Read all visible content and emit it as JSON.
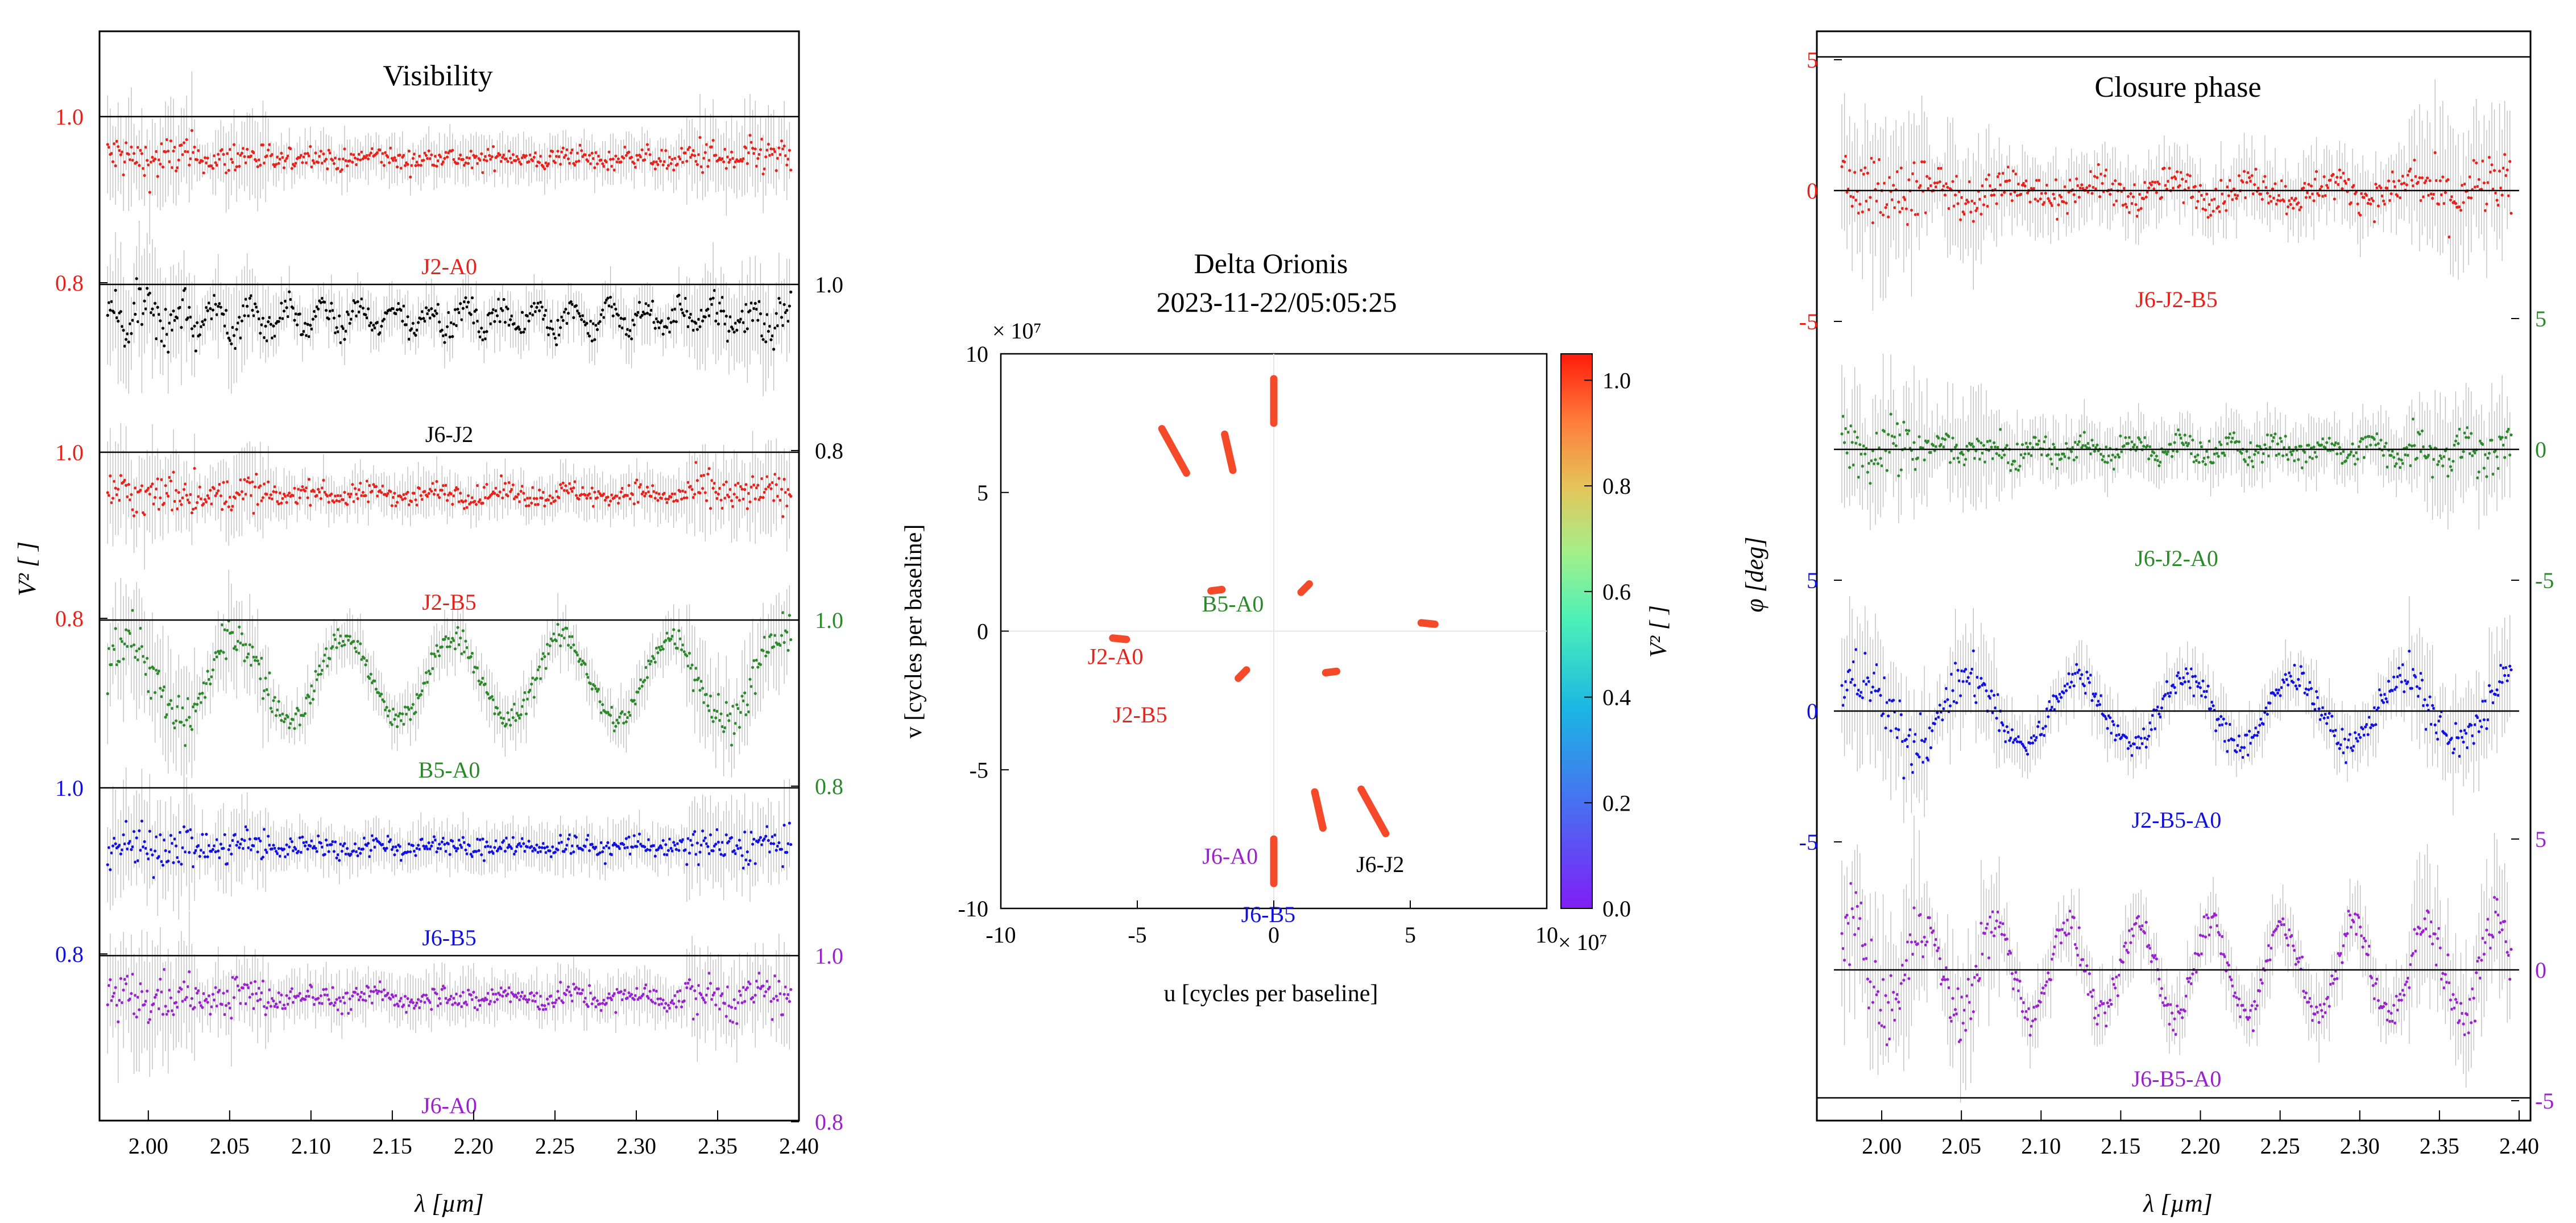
{
  "colors": {
    "red": "#e8221a",
    "green": "#2a8a2a",
    "blue": "#1010e0",
    "purple": "#9a20d0",
    "black": "#000000",
    "errorbar": "#bdbdbd"
  },
  "chart_data": [
    {
      "type": "scatter",
      "title": "Visibility",
      "xlabel": "λ [µm]",
      "ylabel": "V² [ ]",
      "x_ticks": [
        "2.00",
        "2.05",
        "2.10",
        "2.15",
        "2.20",
        "2.25",
        "2.30",
        "2.35",
        "2.40"
      ],
      "xlim": [
        1.97,
        2.4
      ],
      "series": [
        {
          "name": "J2-A0",
          "color": "#e8221a",
          "axis_side": "left",
          "tick_labels": [
            "0.8",
            "1.0"
          ],
          "mean": 0.95,
          "wiggle_amp": 0.004,
          "wiggle_period": 0.04,
          "noise": 0.012
        },
        {
          "name": "J6-J2",
          "color": "#000000",
          "axis_side": "right",
          "tick_labels": [
            "0.8",
            "1.0"
          ],
          "mean": 0.96,
          "wiggle_amp": 0.015,
          "wiggle_period": 0.022,
          "noise": 0.014
        },
        {
          "name": "J2-B5",
          "color": "#e8221a",
          "axis_side": "left",
          "tick_labels": [
            "0.8",
            "1.0"
          ],
          "mean": 0.95,
          "wiggle_amp": 0.004,
          "wiggle_period": 0.04,
          "noise": 0.012
        },
        {
          "name": "B5-A0",
          "color": "#2a8a2a",
          "axis_side": "right",
          "tick_labels": [
            "0.8",
            "1.0"
          ],
          "mean": 0.93,
          "wiggle_amp": 0.05,
          "wiggle_period": 0.067,
          "noise": 0.014
        },
        {
          "name": "J6-B5",
          "color": "#1010e0",
          "axis_side": "left",
          "tick_labels": [
            "0.8",
            "1.0"
          ],
          "mean": 0.93,
          "wiggle_amp": 0.004,
          "wiggle_period": 0.04,
          "noise": 0.012
        },
        {
          "name": "J6-A0",
          "color": "#9a20d0",
          "axis_side": "right",
          "tick_labels": [
            "0.8",
            "1.0"
          ],
          "mean": 0.95,
          "wiggle_amp": 0.005,
          "wiggle_period": 0.04,
          "noise": 0.013
        }
      ]
    },
    {
      "type": "scatter",
      "title": [
        "Delta Orionis",
        "2023-11-22/05:05:25"
      ],
      "xlabel": "u [cycles per baseline]",
      "ylabel": "v [cycles per baseline]",
      "xlim": [
        -10,
        10
      ],
      "ylim": [
        -10,
        10
      ],
      "axis_multiplier": "× 10⁷",
      "x_ticks": [
        "-10",
        "-5",
        "0",
        "5",
        "10"
      ],
      "y_ticks": [
        "10",
        "5",
        "0",
        "-5",
        "-10"
      ],
      "colorbar": {
        "label": "V² [ ]",
        "range": [
          0.0,
          1.05
        ],
        "ticks": [
          "0.0",
          "0.2",
          "0.4",
          "0.6",
          "0.8",
          "1.0"
        ]
      },
      "points": [
        {
          "label": "J2-A0",
          "u1": 5.4,
          "v1": 0.3,
          "u2": 5.9,
          "v2": 0.25
        },
        {
          "label": "J2-B5",
          "u1": 1.9,
          "v1": -1.5,
          "u2": 2.3,
          "v2": -1.45
        },
        {
          "label": "B5-A0",
          "u1": 1.0,
          "v1": 1.4,
          "u2": 1.3,
          "v2": 1.7
        },
        {
          "label": "J6-J2",
          "u1": 3.2,
          "v1": -5.7,
          "u2": 4.1,
          "v2": -7.3
        },
        {
          "label": "J6-B5",
          "u1": 0.0,
          "v1": -7.5,
          "u2": 0.0,
          "v2": -9.1
        },
        {
          "label": "J6-A0",
          "u1": 1.5,
          "v1": -5.8,
          "u2": 1.8,
          "v2": -7.1
        }
      ],
      "labels": [
        {
          "text": "B5-A0",
          "color": "#2a8a2a",
          "u": -1.5,
          "v": 1.0
        },
        {
          "text": "J2-A0",
          "color": "#e8221a",
          "u": -5.8,
          "v": -0.9
        },
        {
          "text": "J2-B5",
          "color": "#e8221a",
          "u": -4.9,
          "v": -3.0
        },
        {
          "text": "J6-A0",
          "color": "#9a20d0",
          "u": -1.6,
          "v": -8.1
        },
        {
          "text": "J6-B5",
          "color": "#1010e0",
          "u": -0.2,
          "v": -10.2
        },
        {
          "text": "J6-J2",
          "color": "#000000",
          "u": 3.9,
          "v": -8.4
        }
      ]
    },
    {
      "type": "scatter",
      "title": "Closure phase",
      "xlabel": "λ [µm]",
      "ylabel": "φ [deg]",
      "x_ticks": [
        "2.00",
        "2.05",
        "2.10",
        "2.15",
        "2.20",
        "2.25",
        "2.30",
        "2.35",
        "2.40"
      ],
      "xlim": [
        1.97,
        2.4
      ],
      "series": [
        {
          "name": "J6-J2-B5",
          "color": "#e8221a",
          "axis_side": "left",
          "tick_labels": [
            "-5",
            "0",
            "5"
          ],
          "wiggle_amp": 0.3,
          "wiggle_period": 0.05,
          "noise": 0.6
        },
        {
          "name": "J6-J2-A0",
          "color": "#2a8a2a",
          "axis_side": "right",
          "tick_labels": [
            "-5",
            "0",
            "5"
          ],
          "wiggle_amp": 0.3,
          "wiggle_period": 0.03,
          "noise": 0.5
        },
        {
          "name": "J2-B5-A0",
          "color": "#1010e0",
          "axis_side": "left",
          "tick_labels": [
            "-5",
            "0",
            "5"
          ],
          "wiggle_amp": 1.3,
          "wiggle_period": 0.068,
          "noise": 0.5
        },
        {
          "name": "J6-B5-A0",
          "color": "#9a20d0",
          "axis_side": "right",
          "tick_labels": [
            "-5",
            "0",
            "5"
          ],
          "wiggle_amp": 1.8,
          "wiggle_period": 0.045,
          "noise": 0.6
        }
      ]
    }
  ]
}
